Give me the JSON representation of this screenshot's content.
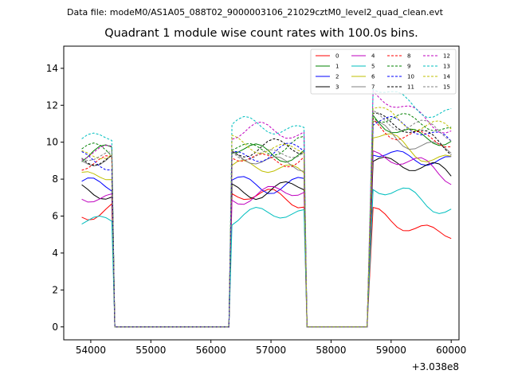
{
  "header": {
    "file_text": "Data file: modeM0/AS1A05_088T02_9000003106_21029cztM0_level2_quad_clean.evt"
  },
  "chart_data": {
    "type": "line",
    "title": "Quadrant 1 module wise count rates with 100.0s bins.",
    "xlabel": "",
    "ylabel": "",
    "x_offset_label": "+3.038e8",
    "xlim": [
      53550,
      60130
    ],
    "ylim": [
      -0.7,
      15.2
    ],
    "xticks": [
      54000,
      55000,
      56000,
      57000,
      58000,
      59000,
      60000
    ],
    "yticks": [
      0,
      2,
      4,
      6,
      8,
      10,
      12,
      14
    ],
    "grid": false,
    "legend": {
      "position": "top-right",
      "columns": 4
    },
    "x_segments": [
      {
        "start": 53850,
        "end": 54350
      },
      {
        "start": 54400,
        "end": 56300
      },
      {
        "start": 56350,
        "end": 57550
      },
      {
        "start": 57600,
        "end": 58650
      },
      {
        "start": 58700,
        "end": 60050
      }
    ],
    "series": [
      {
        "name": "0",
        "color": "#ff0000",
        "dash": "solid",
        "plateaus": [
          6.3,
          7.0,
          5.9
        ]
      },
      {
        "name": "1",
        "color": "#008000",
        "dash": "solid",
        "plateaus": [
          9.3,
          9.5,
          11.3
        ]
      },
      {
        "name": "2",
        "color": "#0000ff",
        "dash": "solid",
        "plateaus": [
          7.5,
          7.8,
          9.8
        ]
      },
      {
        "name": "3",
        "color": "#000000",
        "dash": "solid",
        "plateaus": [
          7.2,
          7.5,
          9.2
        ]
      },
      {
        "name": "4",
        "color": "#bf00bf",
        "dash": "solid",
        "plateaus": [
          7.1,
          7.2,
          9.3
        ]
      },
      {
        "name": "5",
        "color": "#00bfbf",
        "dash": "solid",
        "plateaus": [
          5.9,
          6.0,
          7.4
        ]
      },
      {
        "name": "6",
        "color": "#bfbf00",
        "dash": "solid",
        "plateaus": [
          8.3,
          8.5,
          10.3
        ]
      },
      {
        "name": "7",
        "color": "#808080",
        "dash": "solid",
        "plateaus": [
          9.0,
          9.0,
          10.8
        ]
      },
      {
        "name": "8",
        "color": "#ff0000",
        "dash": "dashed",
        "plateaus": [
          8.7,
          9.2,
          11.1
        ]
      },
      {
        "name": "9",
        "color": "#008000",
        "dash": "dashed",
        "plateaus": [
          9.4,
          9.8,
          11.8
        ]
      },
      {
        "name": "10",
        "color": "#0000ff",
        "dash": "dashed",
        "plateaus": [
          9.0,
          9.4,
          11.3
        ]
      },
      {
        "name": "11",
        "color": "#000000",
        "dash": "dashed",
        "plateaus": [
          9.3,
          9.6,
          11.2
        ]
      },
      {
        "name": "12",
        "color": "#bf00bf",
        "dash": "dashed",
        "plateaus": [
          9.6,
          10.5,
          12.4
        ]
      },
      {
        "name": "13",
        "color": "#00bfbf",
        "dash": "dashed",
        "plateaus": [
          10.2,
          10.8,
          13.0
        ]
      },
      {
        "name": "14",
        "color": "#bfbf00",
        "dash": "dashed",
        "plateaus": [
          9.2,
          9.8,
          11.9
        ]
      },
      {
        "name": "15",
        "color": "#808080",
        "dash": "dashed",
        "plateaus": [
          9.1,
          9.5,
          11.6
        ]
      }
    ]
  }
}
